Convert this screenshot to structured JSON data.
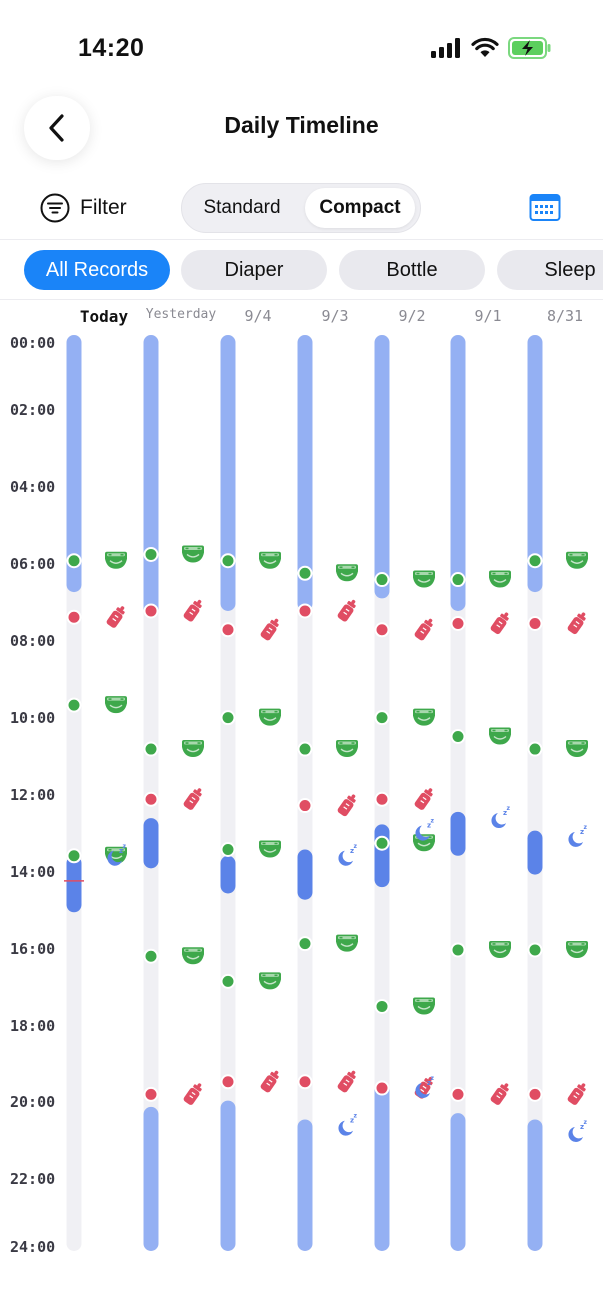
{
  "status": {
    "time": "14:20"
  },
  "header": {
    "title": "Daily Timeline"
  },
  "toolbar": {
    "filter_label": "Filter",
    "view_modes": [
      "Standard",
      "Compact"
    ],
    "active_view": "Compact"
  },
  "chips": [
    {
      "label": "All Records",
      "active": true
    },
    {
      "label": "Diaper",
      "active": false
    },
    {
      "label": "Bottle",
      "active": false
    },
    {
      "label": "Sleep",
      "active": false
    }
  ],
  "days": [
    "Today",
    "Yesterday",
    "9/4",
    "9/3",
    "9/2",
    "9/1",
    "8/31"
  ],
  "hour_labels": [
    "00:00",
    "02:00",
    "04:00",
    "06:00",
    "08:00",
    "10:00",
    "12:00",
    "14:00",
    "16:00",
    "18:00",
    "20:00",
    "22:00",
    "24:00"
  ],
  "current_time": "14:20",
  "colors": {
    "night_sleep": "#94b0f3",
    "sleep": "#5b83e8",
    "diaper": "#3ea84b",
    "bottle": "#e04d63",
    "track": "#f0f0f4",
    "now_marker": "#e04d63"
  },
  "timeline": [
    {
      "day": "Today",
      "sleeps": [
        {
          "start": "00:00",
          "end": "06:40",
          "kind": "night"
        },
        {
          "start": "13:40",
          "end": "15:10",
          "kind": "nap"
        }
      ],
      "diapers": [
        "05:50",
        "09:40",
        "13:40"
      ],
      "bottles": [
        "07:20"
      ],
      "sleep_starts": [
        "13:40"
      ]
    },
    {
      "day": "Yesterday",
      "sleeps": [
        {
          "start": "00:00",
          "end": "07:20",
          "kind": "night"
        },
        {
          "start": "12:40",
          "end": "14:00",
          "kind": "nap"
        },
        {
          "start": "20:20",
          "end": "24:00",
          "kind": "night"
        }
      ],
      "diapers": [
        "05:40",
        "10:50",
        "16:20"
      ],
      "bottles": [
        "07:10",
        "12:10",
        "20:00"
      ],
      "sleep_starts": []
    },
    {
      "day": "9/4",
      "sleeps": [
        {
          "start": "00:00",
          "end": "07:10",
          "kind": "night"
        },
        {
          "start": "13:40",
          "end": "14:40",
          "kind": "nap"
        },
        {
          "start": "20:10",
          "end": "24:00",
          "kind": "night"
        }
      ],
      "diapers": [
        "05:50",
        "10:00",
        "13:30",
        "17:00"
      ],
      "bottles": [
        "07:40",
        "19:40"
      ],
      "sleep_starts": []
    },
    {
      "day": "9/3",
      "sleeps": [
        {
          "start": "00:00",
          "end": "07:10",
          "kind": "night"
        },
        {
          "start": "13:30",
          "end": "14:50",
          "kind": "nap"
        },
        {
          "start": "20:40",
          "end": "24:00",
          "kind": "night"
        }
      ],
      "diapers": [
        "06:10",
        "10:50",
        "16:00"
      ],
      "bottles": [
        "07:10",
        "12:20",
        "19:40"
      ],
      "sleep_starts": [
        "13:40",
        "20:50"
      ]
    },
    {
      "day": "9/2",
      "sleeps": [
        {
          "start": "00:00",
          "end": "06:50",
          "kind": "night"
        },
        {
          "start": "12:50",
          "end": "14:30",
          "kind": "nap"
        },
        {
          "start": "19:40",
          "end": "24:00",
          "kind": "night"
        }
      ],
      "diapers": [
        "06:20",
        "10:00",
        "13:20",
        "17:40"
      ],
      "bottles": [
        "07:40",
        "12:10",
        "19:50"
      ],
      "sleep_starts": [
        "13:00",
        "19:50"
      ]
    },
    {
      "day": "9/1",
      "sleeps": [
        {
          "start": "00:00",
          "end": "07:10",
          "kind": "night"
        },
        {
          "start": "12:30",
          "end": "13:40",
          "kind": "nap"
        },
        {
          "start": "20:30",
          "end": "24:00",
          "kind": "night"
        }
      ],
      "diapers": [
        "06:20",
        "10:30",
        "16:10"
      ],
      "bottles": [
        "07:30",
        "20:00"
      ],
      "sleep_starts": [
        "12:40"
      ]
    },
    {
      "day": "8/31",
      "sleeps": [
        {
          "start": "00:00",
          "end": "06:40",
          "kind": "night"
        },
        {
          "start": "13:00",
          "end": "14:10",
          "kind": "nap"
        },
        {
          "start": "20:40",
          "end": "24:00",
          "kind": "night"
        }
      ],
      "diapers": [
        "05:50",
        "10:50",
        "16:10"
      ],
      "bottles": [
        "07:30",
        "20:00"
      ],
      "sleep_starts": [
        "13:10",
        "21:00"
      ]
    }
  ]
}
